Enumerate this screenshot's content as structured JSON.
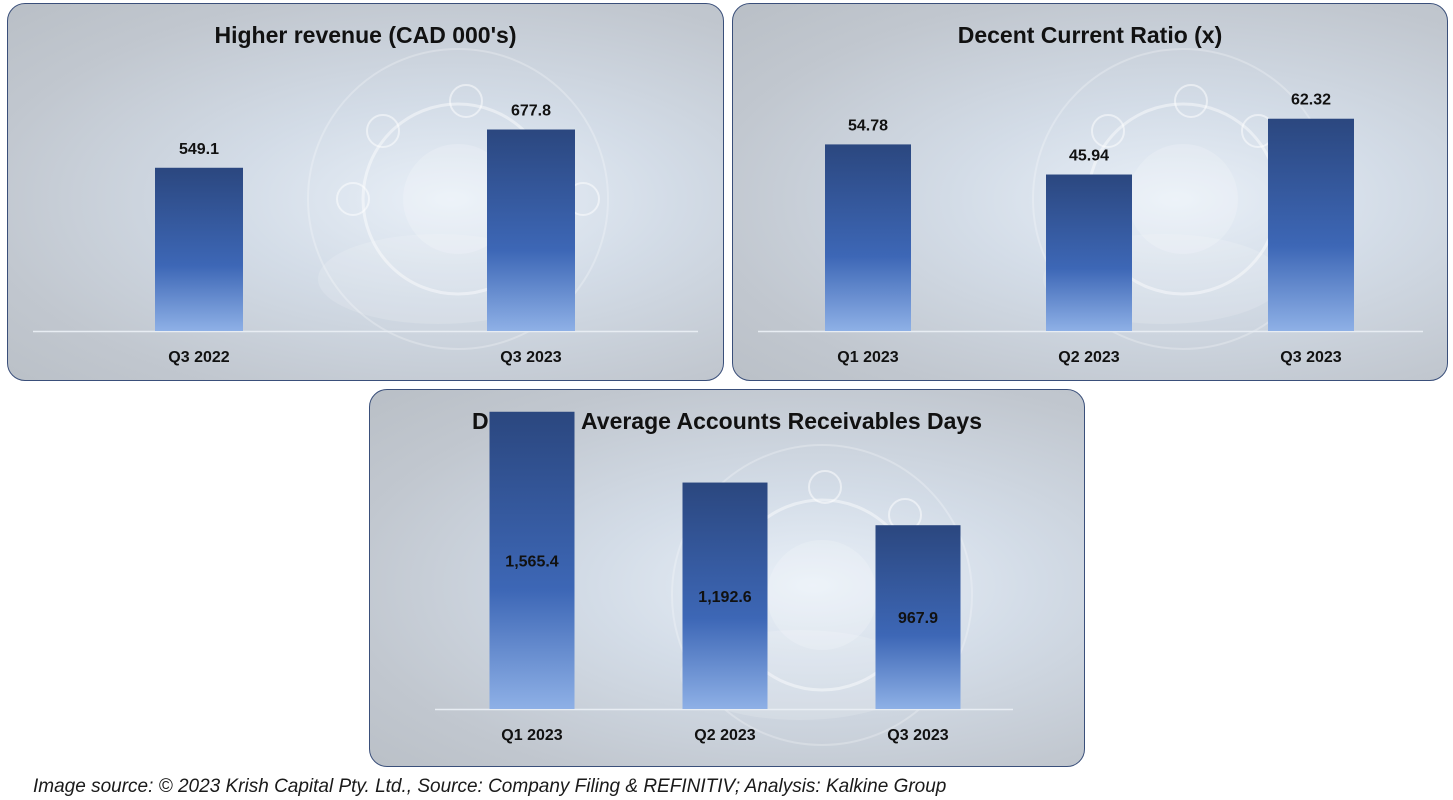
{
  "colors": {
    "bar_top": "#2b477f",
    "bar_mid": "#3d67b6",
    "bar_bottom": "#8eb0e6",
    "axis": "#e8edf3",
    "text": "#111111"
  },
  "chart_data": [
    {
      "type": "bar",
      "title": "Higher revenue (CAD 000's)",
      "categories": [
        "Q3 2022",
        "Q3 2023"
      ],
      "values": [
        549.1,
        677.8
      ],
      "value_labels": [
        "549.1",
        "677.8"
      ],
      "label_position": "above",
      "ylim": [
        0,
        1100
      ],
      "xlabel": "",
      "ylabel": "",
      "grid": false,
      "legend": "none"
    },
    {
      "type": "bar",
      "title": "Decent Current Ratio (x)",
      "categories": [
        "Q1 2023",
        "Q2 2023",
        "Q3 2023"
      ],
      "values": [
        54.78,
        45.94,
        62.32
      ],
      "value_labels": [
        "54.78",
        "45.94",
        "62.32"
      ],
      "label_position": "above",
      "ylim": [
        0,
        96
      ],
      "xlabel": "",
      "ylabel": "",
      "grid": false,
      "legend": "none"
    },
    {
      "type": "bar",
      "title": "Declining Average Accounts Receivables Days",
      "categories": [
        "Q1 2023",
        "Q2 2023",
        "Q3 2023"
      ],
      "values": [
        1565.4,
        1192.6,
        967.9
      ],
      "value_labels": [
        "1,565.4",
        "1,192.6",
        "967.9"
      ],
      "label_position": "inside",
      "ylim": [
        0,
        1680
      ],
      "xlabel": "",
      "ylabel": "",
      "grid": false,
      "legend": "none"
    }
  ],
  "footer": {
    "source": "Image source: © 2023 Krish Capital Pty. Ltd., Source: Company Filing & REFINITIV; Analysis: Kalkine Group"
  }
}
